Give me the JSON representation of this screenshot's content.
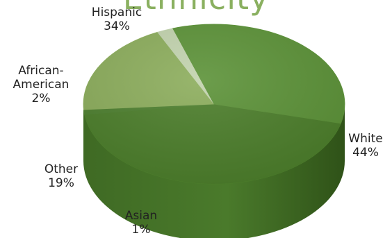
{
  "chart_data": {
    "type": "pie",
    "title": "Ethnicity",
    "slices": [
      {
        "label": "White",
        "value": 44,
        "display": "44%",
        "color": "#4c7e2b"
      },
      {
        "label": "Asian",
        "value": 1,
        "display": "1%",
        "color": "#4e8030"
      },
      {
        "label": "Other",
        "value": 19,
        "display": "19%",
        "color": "#8cad5c"
      },
      {
        "label": "African-American",
        "value": 2,
        "display": "2%",
        "color": "#c2d3ae"
      },
      {
        "label": "Hispanic",
        "value": 34,
        "display": "34%",
        "color": "#5c9238"
      }
    ],
    "label_lines": {
      "Hispanic": [
        "Hispanic",
        "34%"
      ],
      "African-American": [
        "African-",
        "American",
        "2%"
      ],
      "Other": [
        "Other",
        "19%"
      ],
      "Asian": [
        "Asian",
        "1%"
      ],
      "White": [
        "White",
        "44%"
      ]
    }
  }
}
